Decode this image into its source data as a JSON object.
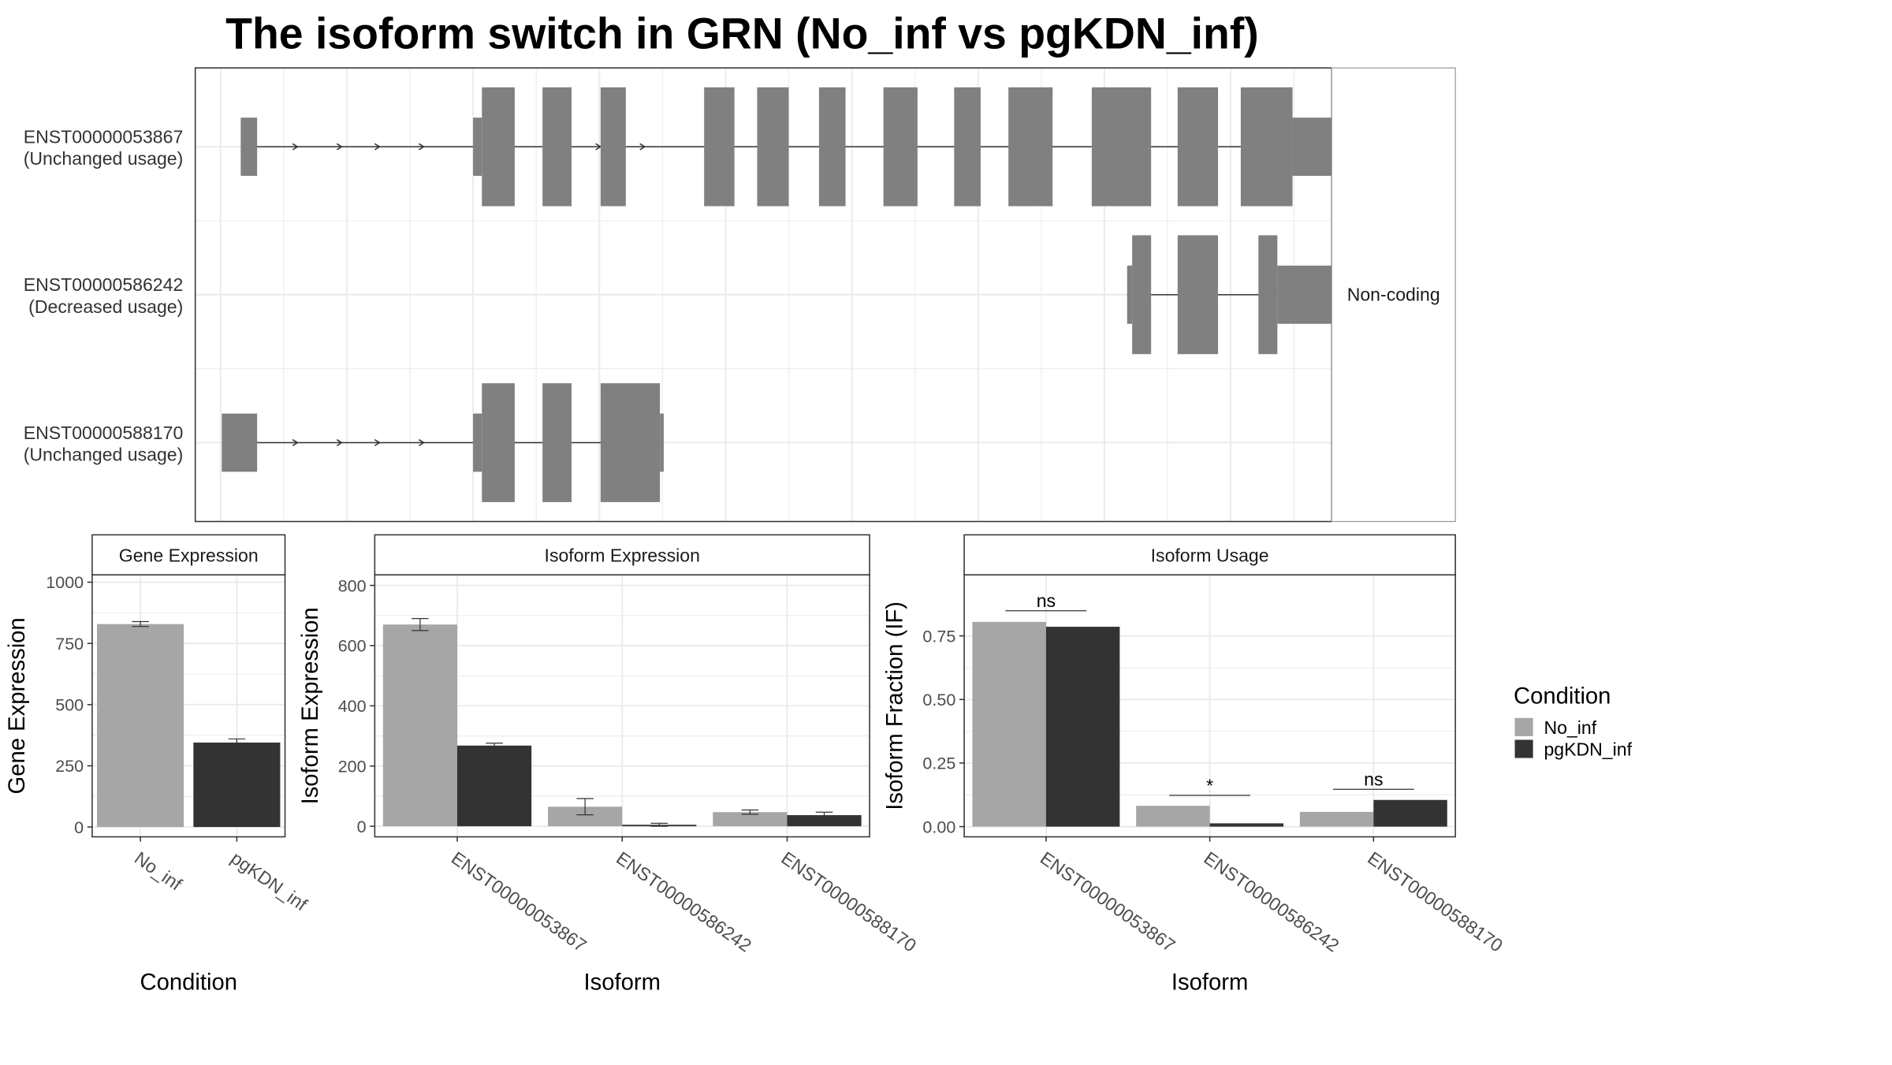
{
  "title": "The isoform switch in GRN (No_inf vs pgKDN_inf)",
  "colors": {
    "no_inf": "#a6a6a6",
    "pgkdn_inf": "#333333",
    "exon": "#808080",
    "grid": "#ebebeb",
    "panel_border": "#333333"
  },
  "chart_data": [
    {
      "panel": "isoform-structure",
      "type": "gene-structure",
      "xlim": [
        -20,
        880
      ],
      "transcripts": [
        {
          "id": "ENST00000053867",
          "usage": "(Unchanged usage)",
          "exons": [
            [
              16,
              29,
              "utr"
            ],
            [
              200,
              207,
              "utr"
            ],
            [
              207,
              233,
              "cds"
            ],
            [
              255,
              278,
              "cds"
            ],
            [
              301,
              321,
              "cds"
            ],
            [
              383,
              407,
              "cds"
            ],
            [
              425,
              450,
              "cds"
            ],
            [
              474,
              495,
              "cds"
            ],
            [
              525,
              552,
              "cds"
            ],
            [
              581,
              602,
              "cds"
            ],
            [
              624,
              659,
              "cds"
            ],
            [
              690,
              737,
              "cds"
            ],
            [
              758,
              790,
              "cds"
            ],
            [
              808,
              849,
              "cds"
            ],
            [
              849,
              889,
              "utr"
            ]
          ],
          "arrows": [
            60,
            95,
            125,
            160,
            300,
            335
          ]
        },
        {
          "id": "ENST00000586242",
          "usage": "(Decreased usage)",
          "exons": [
            [
              718,
              722,
              "utr"
            ],
            [
              722,
              737,
              "cds"
            ],
            [
              758,
              790,
              "cds"
            ],
            [
              822,
              837,
              "cds"
            ],
            [
              837,
              889,
              "utr"
            ]
          ],
          "arrows": []
        },
        {
          "id": "ENST00000588170",
          "usage": "(Unchanged usage)",
          "exons": [
            [
              1,
              29,
              "utr"
            ],
            [
              200,
              207,
              "utr"
            ],
            [
              207,
              233,
              "cds"
            ],
            [
              255,
              278,
              "cds"
            ],
            [
              301,
              348,
              "cds"
            ],
            [
              348,
              351,
              "utr"
            ]
          ],
          "arrows": [
            60,
            95,
            125,
            160
          ]
        }
      ],
      "side_label": "Non-coding"
    },
    {
      "panel": "gene-expression",
      "type": "bar",
      "strip": "Gene Expression",
      "categories": [
        "No_inf",
        "pgKDN_inf"
      ],
      "values": [
        829,
        345
      ],
      "errors": [
        10,
        15
      ],
      "ylim": [
        -40,
        1030
      ],
      "yticks": [
        0,
        250,
        500,
        750,
        1000
      ],
      "xlabel": "Condition",
      "ylabel": "Gene Expression"
    },
    {
      "panel": "isoform-expression",
      "type": "bar",
      "strip": "Isoform Expression",
      "categories": [
        "ENST00000053867",
        "ENST00000586242",
        "ENST00000588170"
      ],
      "series": [
        {
          "name": "No_inf",
          "values": [
            670,
            65,
            47
          ],
          "errors": [
            20,
            27,
            7
          ]
        },
        {
          "name": "pgKDN_inf",
          "values": [
            268,
            5,
            37
          ],
          "errors": [
            8,
            5,
            10
          ]
        }
      ],
      "ylim": [
        -35,
        835
      ],
      "yticks": [
        0,
        200,
        400,
        600,
        800
      ],
      "xlabel": "Isoform",
      "ylabel": "Isoform Expression"
    },
    {
      "panel": "isoform-usage",
      "type": "bar",
      "strip": "Isoform Usage",
      "categories": [
        "ENST00000053867",
        "ENST00000586242",
        "ENST00000588170"
      ],
      "series": [
        {
          "name": "No_inf",
          "values": [
            0.805,
            0.082,
            0.058
          ]
        },
        {
          "name": "pgKDN_inf",
          "values": [
            0.786,
            0.013,
            0.105
          ]
        }
      ],
      "significance": [
        "ns",
        "*",
        "ns"
      ],
      "sig_heights": [
        0.849,
        0.123,
        0.147
      ],
      "ylim": [
        -0.04,
        0.99
      ],
      "yticks": [
        0.0,
        0.25,
        0.5,
        0.75
      ],
      "ytick_labels": [
        "0.00",
        "0.25",
        "0.50",
        "0.75"
      ],
      "xlabel": "Isoform",
      "ylabel": "Isoform Fraction (IF)"
    }
  ],
  "legend": {
    "title": "Condition",
    "items": [
      "No_inf",
      "pgKDN_inf"
    ]
  }
}
